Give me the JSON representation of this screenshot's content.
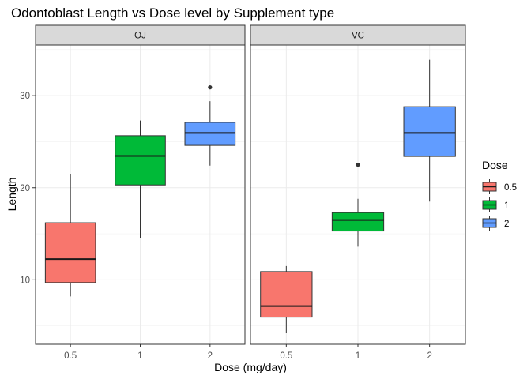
{
  "chart_data": {
    "type": "box",
    "title": "Odontoblast Length vs Dose level by Supplement type",
    "xlabel": "Dose (mg/day)",
    "ylabel": "Length",
    "categories": [
      "0.5",
      "1",
      "2"
    ],
    "ylim": [
      3,
      35.5
    ],
    "yticks": [
      10,
      20,
      30
    ],
    "grid": true,
    "legend": {
      "title": "Dose",
      "position": "right",
      "entries": [
        {
          "label": "0.5",
          "color": "#F8766D"
        },
        {
          "label": "1",
          "color": "#00BA38"
        },
        {
          "label": "2",
          "color": "#619CFF"
        }
      ]
    },
    "panels": [
      {
        "label": "OJ",
        "boxes": [
          {
            "category": "0.5",
            "min": 8.2,
            "q1": 9.7,
            "median": 12.25,
            "q3": 16.2,
            "max": 21.5,
            "outliers": []
          },
          {
            "category": "1",
            "min": 14.5,
            "q1": 20.3,
            "median": 23.45,
            "q3": 25.65,
            "max": 27.3,
            "outliers": []
          },
          {
            "category": "2",
            "min": 22.4,
            "q1": 24.6,
            "median": 25.95,
            "q3": 27.1,
            "max": 29.4,
            "outliers": [
              30.9
            ]
          }
        ]
      },
      {
        "label": "VC",
        "boxes": [
          {
            "category": "0.5",
            "min": 4.2,
            "q1": 5.95,
            "median": 7.15,
            "q3": 10.9,
            "max": 11.5,
            "outliers": []
          },
          {
            "category": "1",
            "min": 13.6,
            "q1": 15.3,
            "median": 16.5,
            "q3": 17.3,
            "max": 18.8,
            "outliers": [
              22.5
            ]
          },
          {
            "category": "2",
            "min": 18.5,
            "q1": 23.4,
            "median": 25.95,
            "q3": 28.8,
            "max": 33.9,
            "outliers": []
          }
        ]
      }
    ]
  }
}
